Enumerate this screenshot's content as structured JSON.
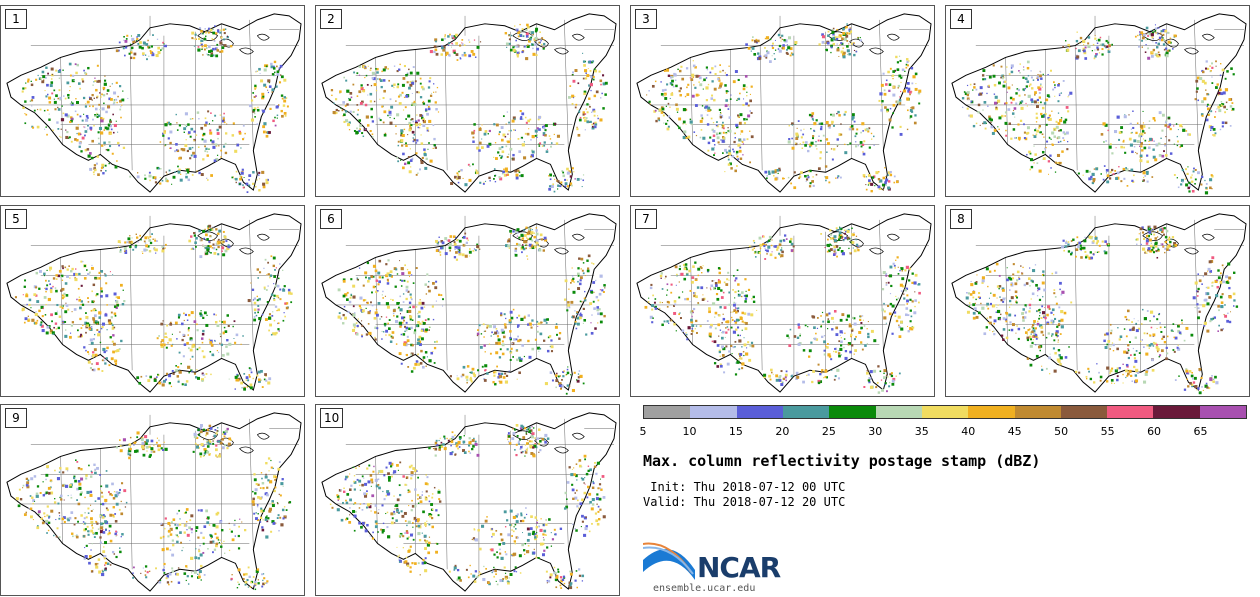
{
  "panels": [
    {
      "id": "1"
    },
    {
      "id": "2"
    },
    {
      "id": "3"
    },
    {
      "id": "4"
    },
    {
      "id": "5"
    },
    {
      "id": "6"
    },
    {
      "id": "7"
    },
    {
      "id": "8"
    },
    {
      "id": "9"
    },
    {
      "id": "10"
    }
  ],
  "colorbar": {
    "ticks": [
      "5",
      "10",
      "15",
      "20",
      "25",
      "30",
      "35",
      "40",
      "45",
      "50",
      "55",
      "60",
      "65"
    ],
    "colors": [
      "#a0a0a0",
      "#b4bce8",
      "#5a5ed8",
      "#4a9a9e",
      "#0a8a0a",
      "#b8d8b4",
      "#f0dc60",
      "#f0b020",
      "#c08a30",
      "#8a5a3c",
      "#f05a80",
      "#6a1a3a",
      "#a850b0"
    ]
  },
  "title": "Max. column reflectivity postage stamp (dBZ)",
  "init_line": " Init: Thu 2018-07-12 00 UTC",
  "valid_line": "Valid: Thu 2018-07-12 20 UTC",
  "logo": {
    "name": "NCAR",
    "url": "ensemble.ucar.edu"
  }
}
